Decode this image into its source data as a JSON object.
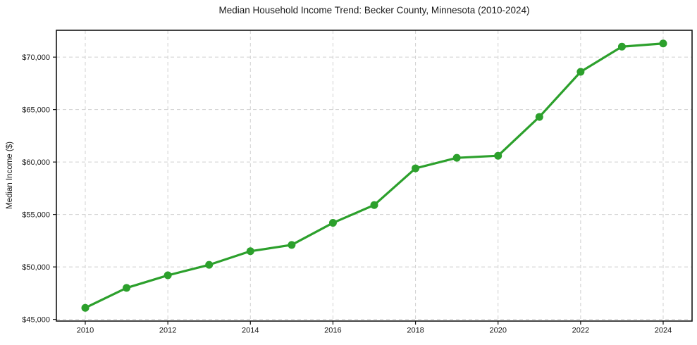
{
  "title": "Median Household Income Trend: Becker County, Minnesota (2010-2024)",
  "chart_data": {
    "type": "line",
    "title": "Median Household Income Trend: Becker County, Minnesota (2010-2024)",
    "xlabel": "",
    "ylabel": "Median Income ($)",
    "x": [
      2010,
      2011,
      2012,
      2013,
      2014,
      2015,
      2016,
      2017,
      2018,
      2019,
      2020,
      2021,
      2022,
      2023,
      2024
    ],
    "series": [
      {
        "name": "Median Household Income",
        "values": [
          46100,
          48000,
          49200,
          50200,
          51500,
          52100,
          54200,
          55900,
          59400,
          60400,
          60600,
          64300,
          68600,
          71000,
          71300
        ]
      }
    ],
    "xlim": [
      2009.3,
      2024.7
    ],
    "ylim": [
      44840,
      72560
    ],
    "xticks": [
      2010,
      2012,
      2014,
      2016,
      2018,
      2020,
      2022,
      2024
    ],
    "yticks": [
      45000,
      50000,
      55000,
      60000,
      65000,
      70000
    ],
    "ytick_labels": [
      "$45,000",
      "$50,000",
      "$55,000",
      "$60,000",
      "$65,000",
      "$70,000"
    ],
    "grid": true,
    "grid_style": "dashed",
    "legend": "none",
    "line_color": "#2ca02c",
    "marker": "circle",
    "background_color": "#ffffff",
    "grid_color": "#d0d0d0",
    "axis_color": "#141414",
    "text_color": "#1a1a1a"
  }
}
